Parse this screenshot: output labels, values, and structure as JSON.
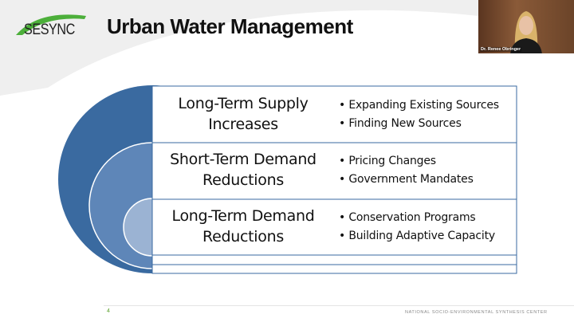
{
  "header": {
    "logo_text": "SESYNC",
    "title": "Urban Water Management"
  },
  "video": {
    "participant_name": "Dr. Renee Obringer"
  },
  "diagram": {
    "rows": [
      {
        "title": "Long-Term Supply Increases",
        "bullets": [
          "Expanding Existing Sources",
          "Finding New Sources"
        ]
      },
      {
        "title": "Short-Term Demand Reductions",
        "bullets": [
          "Pricing Changes",
          "Government Mandates"
        ]
      },
      {
        "title": "Long-Term Demand Reductions",
        "bullets": [
          "Conservation Programs",
          "Building Adaptive Capacity"
        ]
      }
    ],
    "colors": {
      "outer": "#3a6aa0",
      "middle": "#5e86b8",
      "inner": "#9bb3d3",
      "border": "#3a6aa0"
    }
  },
  "footer": {
    "page_number": "4",
    "organization": "NATIONAL SOCIO-ENVIRONMENTAL SYNTHESIS CENTER"
  }
}
